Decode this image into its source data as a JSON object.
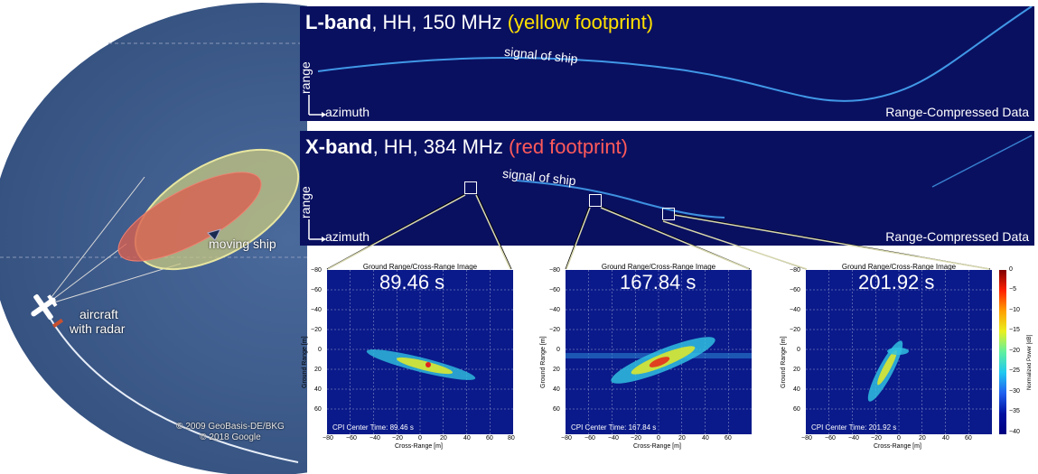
{
  "map": {
    "ship_label": "moving ship",
    "aircraft_label_line1": "aircraft",
    "aircraft_label_line2": "with radar",
    "copyright_line1": "© 2009 GeoBasis-DE/BKG",
    "copyright_line2": "© 2018 Google"
  },
  "lband": {
    "title_bold": "L-band",
    "title_rest": ", HH, 150 MHz ",
    "title_color": "(yellow footprint)",
    "signal_label": "signal of ship",
    "axis_range": "range",
    "axis_azimuth": "azimuth",
    "data_label": "Range-Compressed Data"
  },
  "xband": {
    "title_bold": "X-band",
    "title_rest": ", HH, 384 MHz ",
    "title_color": "(red footprint)",
    "signal_label": "signal of ship",
    "axis_range": "range",
    "axis_azimuth": "azimuth",
    "data_label": "Range-Compressed Data"
  },
  "images": [
    {
      "title": "Ground Range/Cross-Range Image",
      "time": "89.46 s",
      "cpi": "CPI Center Time: 89.46 s"
    },
    {
      "title": "Ground Range/Cross-Range Image",
      "time": "167.84 s",
      "cpi": "CPI Center Time: 167.84 s"
    },
    {
      "title": "Ground Range/Cross-Range Image",
      "time": "201.92 s",
      "cpi": "CPI Center Time: 201.92 s"
    }
  ],
  "axes": {
    "xlabel": "Cross-Range [m]",
    "ylabel": "Ground Range [m]",
    "x_ticks_first": [
      "−80",
      "−60",
      "−40",
      "−20",
      "0",
      "20",
      "40",
      "60",
      "80"
    ],
    "x_ticks": [
      "−80",
      "−60",
      "−40",
      "−20",
      "0",
      "20",
      "40",
      "60"
    ],
    "y_ticks": [
      "−80",
      "−60",
      "−40",
      "−20",
      "0",
      "20",
      "40",
      "60"
    ]
  },
  "colorbar": {
    "label": "Normalized Power [dB]",
    "ticks": [
      "0",
      "−5",
      "−10",
      "−15",
      "−20",
      "−25",
      "−30",
      "−35",
      "−40"
    ]
  },
  "colors": {
    "ocean": "#3d5a8a",
    "footprint_l": "#e8e6a0",
    "footprint_x": "#e06050",
    "radar_bg": "#0a1060"
  }
}
